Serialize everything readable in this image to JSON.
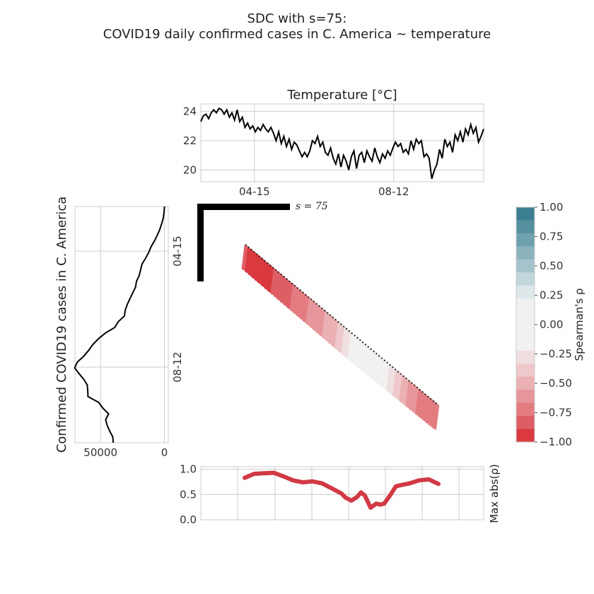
{
  "figure": {
    "title_line1": "SDC with s=75:",
    "title_line2": "COVID19 daily confirmed cases in C. America ~ temperature"
  },
  "chart_data": [
    {
      "id": "temperature",
      "type": "line",
      "title": "Temperature [°C]",
      "x_ticks": [
        "04-15",
        "08-12"
      ],
      "y_ticks": [
        20,
        22,
        24
      ],
      "ylim": [
        19.2,
        24.5
      ],
      "grid": true,
      "series": [
        {
          "color": "#000000",
          "x": [
            0,
            3,
            6,
            9,
            12,
            15,
            18,
            21,
            24,
            27,
            30,
            33,
            36,
            39,
            42,
            45,
            48,
            51,
            54,
            57,
            60,
            63,
            66,
            69,
            72,
            75,
            78,
            81,
            84,
            87,
            90,
            93,
            96,
            99,
            102,
            105,
            108,
            111,
            114,
            117,
            120,
            123,
            126,
            129,
            132,
            135,
            138,
            141,
            144,
            147,
            150,
            153,
            156,
            159,
            162,
            165,
            168,
            171,
            174,
            177,
            180,
            183,
            186,
            189,
            192,
            195,
            198,
            201,
            204,
            207,
            210,
            213,
            216,
            219,
            222,
            225,
            228,
            231,
            234,
            237,
            240,
            243,
            246,
            249,
            252,
            255,
            258,
            261,
            264,
            267,
            270,
            273,
            276,
            279,
            282,
            285,
            288,
            291,
            294,
            297,
            300,
            303,
            306,
            309,
            312,
            315,
            318,
            321,
            324,
            327
          ],
          "y": [
            23.3,
            23.7,
            23.8,
            23.5,
            23.9,
            24.1,
            23.9,
            24.2,
            24.1,
            23.8,
            24.1,
            23.6,
            23.9,
            23.4,
            24.1,
            23.3,
            23.6,
            22.9,
            23.2,
            22.8,
            23.0,
            22.6,
            22.9,
            22.7,
            23.1,
            22.8,
            22.6,
            22.9,
            22.5,
            22.0,
            22.6,
            21.8,
            22.3,
            21.6,
            22.1,
            21.4,
            21.9,
            21.7,
            21.3,
            20.9,
            21.2,
            20.9,
            21.3,
            22.0,
            21.8,
            22.3,
            21.6,
            21.9,
            21.2,
            21.0,
            21.5,
            20.8,
            20.4,
            21.1,
            20.2,
            21.0,
            20.6,
            20.0,
            20.9,
            21.3,
            20.1,
            21.0,
            21.2,
            20.5,
            21.3,
            20.9,
            20.6,
            21.5,
            20.9,
            20.5,
            21.1,
            20.8,
            21.3,
            21.0,
            21.5,
            21.9,
            21.6,
            21.8,
            21.2,
            21.4,
            21.1,
            22.0,
            21.4,
            22.1,
            21.8,
            22.0,
            20.9,
            21.1,
            20.8,
            19.4,
            20.0,
            20.4,
            21.4,
            20.8,
            22.1,
            21.6,
            21.9,
            21.2,
            22.4,
            22.0,
            22.6,
            21.9,
            22.8,
            22.4,
            23.1,
            22.5,
            22.9,
            21.9,
            22.3,
            22.8
          ]
        }
      ]
    },
    {
      "id": "cases",
      "type": "line",
      "ylabel": "Confirmed COVID19 cases in C. America",
      "x_ticks": [
        50000,
        0
      ],
      "y_ticks": [
        "04-15",
        "08-12"
      ],
      "xlim": [
        70000,
        -3000
      ],
      "grid": true,
      "series": [
        {
          "color": "#000000",
          "t": [
            0,
            8,
            16,
            24,
            32,
            40,
            48,
            56,
            64,
            72,
            80,
            88,
            96,
            104,
            112,
            120,
            128,
            136,
            144,
            152,
            160,
            168,
            176,
            184,
            192,
            200,
            208,
            216,
            224,
            232,
            240,
            248,
            256,
            264,
            272,
            280,
            288,
            296,
            304,
            312,
            320,
            328
          ],
          "v": [
            0,
            300,
            900,
            2200,
            3700,
            5600,
            7900,
            10500,
            12400,
            14800,
            17600,
            18700,
            19800,
            21900,
            22600,
            24800,
            27000,
            29100,
            30700,
            31300,
            36100,
            38900,
            46400,
            51800,
            56200,
            59400,
            63200,
            68100,
            70200,
            66900,
            63100,
            60400,
            60000,
            59800,
            51500,
            48200,
            43700,
            46000,
            44800,
            42800,
            40400,
            40100
          ]
        }
      ]
    },
    {
      "id": "sdc",
      "type": "heatmap",
      "s_label": "s = 75",
      "s": 75,
      "colorbar_label": "Spearman's ρ",
      "colorbar_ticks": [
        1.0,
        0.75,
        0.5,
        0.25,
        0.0,
        -0.25,
        -0.5,
        -0.75,
        -1.0
      ],
      "colorbar_tick_labels": [
        "1.00",
        "0.75",
        "0.50",
        "0.25",
        "0.00",
        "−0.25",
        "−0.50",
        "−0.75",
        "−1.00"
      ],
      "colorbar_colors": [
        "#3d7f92",
        "#56909f",
        "#6ea0ad",
        "#8ab3bd",
        "#a4c3cb",
        "#c2d6db",
        "#dde7ea",
        "#f1f1f1",
        "#f1f1f1",
        "#f1f1f1",
        "#f1f1f1",
        "#f0dfe0",
        "#eec8ca",
        "#eab0b3",
        "#e6969a",
        "#e37c81",
        "#de5e65",
        "#d9393f"
      ],
      "band": [
        {
          "t": 0.0,
          "rho": -0.88
        },
        {
          "t": 0.1,
          "rho": -0.92
        },
        {
          "t": 0.2,
          "rho": -0.85
        },
        {
          "t": 0.3,
          "rho": -0.7
        },
        {
          "t": 0.4,
          "rho": -0.6
        },
        {
          "t": 0.5,
          "rho": -0.4
        },
        {
          "t": 0.55,
          "rho": -0.2
        },
        {
          "t": 0.62,
          "rho": -0.1
        },
        {
          "t": 0.7,
          "rho": -0.05
        },
        {
          "t": 0.78,
          "rho": -0.3
        },
        {
          "t": 0.86,
          "rho": -0.6
        },
        {
          "t": 0.93,
          "rho": -0.72
        },
        {
          "t": 1.0,
          "rho": -0.7
        }
      ]
    },
    {
      "id": "max_abs",
      "type": "line",
      "ylabel": "Max abs(ρ)",
      "y_ticks": [
        "0.0",
        "0.5",
        "1.0"
      ],
      "ylim": [
        0,
        1.05
      ],
      "grid": true,
      "series": [
        {
          "color": "#d13a44",
          "x": [
            0,
            0.05,
            0.1,
            0.15,
            0.2,
            0.25,
            0.3,
            0.35,
            0.4,
            0.45,
            0.5,
            0.52,
            0.55,
            0.58,
            0.6,
            0.62,
            0.65,
            0.68,
            0.7,
            0.72,
            0.75,
            0.78,
            0.8,
            0.85,
            0.9,
            0.95,
            1.0
          ],
          "y": [
            0.83,
            0.91,
            0.92,
            0.93,
            0.86,
            0.78,
            0.74,
            0.76,
            0.72,
            0.62,
            0.52,
            0.44,
            0.38,
            0.45,
            0.54,
            0.48,
            0.24,
            0.32,
            0.3,
            0.32,
            0.48,
            0.66,
            0.68,
            0.72,
            0.78,
            0.8,
            0.71
          ]
        }
      ]
    }
  ]
}
